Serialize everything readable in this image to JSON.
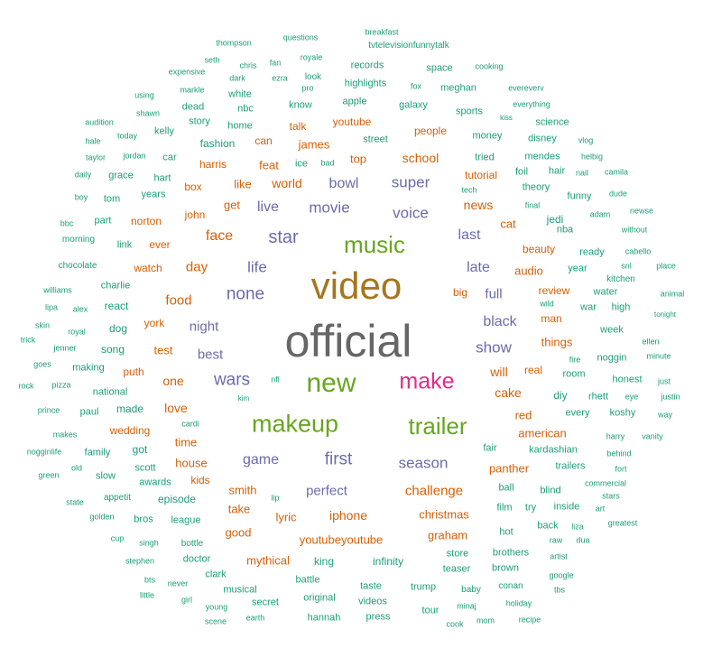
{
  "colors": {
    "purple": "#6b6bab",
    "orange": "#d95f02",
    "green": "#1b9e77",
    "lime": "#66a61e",
    "gold": "#a6761d",
    "magenta": "#e7298a",
    "gray": "#666666"
  },
  "words": [
    {
      "text": "official",
      "color": "gray"
    },
    {
      "text": "video",
      "color": "gold"
    },
    {
      "text": "new",
      "color": "lime"
    },
    {
      "text": "make",
      "color": "magenta"
    },
    {
      "text": "makeup",
      "color": "lime"
    },
    {
      "text": "trailer",
      "color": "lime"
    },
    {
      "text": "music",
      "color": "lime"
    },
    {
      "text": "star",
      "color": "purple"
    },
    {
      "text": "none",
      "color": "purple"
    },
    {
      "text": "life",
      "color": "purple"
    },
    {
      "text": "movie",
      "color": "purple"
    },
    {
      "text": "voice",
      "color": "purple"
    },
    {
      "text": "wars",
      "color": "purple"
    },
    {
      "text": "show",
      "color": "purple"
    },
    {
      "text": "season",
      "color": "purple"
    },
    {
      "text": "first",
      "color": "purple"
    },
    {
      "text": "game",
      "color": "purple"
    },
    {
      "text": "perfect",
      "color": "purple"
    },
    {
      "text": "black",
      "color": "purple"
    },
    {
      "text": "full",
      "color": "purple"
    },
    {
      "text": "late",
      "color": "purple"
    },
    {
      "text": "last",
      "color": "purple"
    },
    {
      "text": "super",
      "color": "purple"
    },
    {
      "text": "bowl",
      "color": "purple"
    },
    {
      "text": "live",
      "color": "purple"
    },
    {
      "text": "night",
      "color": "purple"
    },
    {
      "text": "best",
      "color": "purple"
    },
    {
      "text": "face",
      "color": "orange"
    },
    {
      "text": "day",
      "color": "orange"
    },
    {
      "text": "food",
      "color": "orange"
    },
    {
      "text": "one",
      "color": "orange"
    },
    {
      "text": "love",
      "color": "orange"
    },
    {
      "text": "iphone",
      "color": "orange"
    },
    {
      "text": "challenge",
      "color": "orange"
    },
    {
      "text": "school",
      "color": "orange"
    },
    {
      "text": "world",
      "color": "orange"
    },
    {
      "text": "news",
      "color": "orange"
    },
    {
      "text": "will",
      "color": "orange"
    },
    {
      "text": "cake",
      "color": "orange"
    },
    {
      "text": "house",
      "color": "orange"
    },
    {
      "text": "time",
      "color": "orange"
    },
    {
      "text": "smith",
      "color": "orange"
    },
    {
      "text": "take",
      "color": "orange"
    },
    {
      "text": "good",
      "color": "orange"
    },
    {
      "text": "lyric",
      "color": "orange"
    },
    {
      "text": "christmas",
      "color": "orange"
    },
    {
      "text": "graham",
      "color": "orange"
    },
    {
      "text": "youtubeyoutube",
      "color": "orange"
    },
    {
      "text": "mythical",
      "color": "orange"
    },
    {
      "text": "panther",
      "color": "orange"
    },
    {
      "text": "american",
      "color": "orange"
    },
    {
      "text": "red",
      "color": "orange"
    },
    {
      "text": "things",
      "color": "orange"
    },
    {
      "text": "man",
      "color": "orange"
    },
    {
      "text": "review",
      "color": "orange"
    },
    {
      "text": "audio",
      "color": "orange"
    },
    {
      "text": "beauty",
      "color": "orange"
    },
    {
      "text": "big",
      "color": "orange"
    },
    {
      "text": "real",
      "color": "orange"
    },
    {
      "text": "cat",
      "color": "orange"
    },
    {
      "text": "top",
      "color": "orange"
    },
    {
      "text": "james",
      "color": "orange"
    },
    {
      "text": "feat",
      "color": "orange"
    },
    {
      "text": "harris",
      "color": "orange"
    },
    {
      "text": "like",
      "color": "orange"
    },
    {
      "text": "get",
      "color": "orange"
    },
    {
      "text": "box",
      "color": "orange"
    },
    {
      "text": "john",
      "color": "orange"
    },
    {
      "text": "norton",
      "color": "orange"
    },
    {
      "text": "ever",
      "color": "orange"
    },
    {
      "text": "watch",
      "color": "orange"
    },
    {
      "text": "york",
      "color": "orange"
    },
    {
      "text": "test",
      "color": "orange"
    },
    {
      "text": "puth",
      "color": "orange"
    },
    {
      "text": "wedding",
      "color": "orange"
    },
    {
      "text": "kids",
      "color": "orange"
    },
    {
      "text": "talk",
      "color": "orange"
    },
    {
      "text": "youtube",
      "color": "orange"
    },
    {
      "text": "people",
      "color": "orange"
    },
    {
      "text": "can",
      "color": "orange"
    },
    {
      "text": "tutorial",
      "color": "orange"
    },
    {
      "text": "king",
      "color": "green"
    },
    {
      "text": "infinity",
      "color": "green"
    },
    {
      "text": "episode",
      "color": "green"
    },
    {
      "text": "league",
      "color": "green"
    },
    {
      "text": "awards",
      "color": "green"
    },
    {
      "text": "scott",
      "color": "green"
    },
    {
      "text": "got",
      "color": "green"
    },
    {
      "text": "slow",
      "color": "green"
    },
    {
      "text": "family",
      "color": "green"
    },
    {
      "text": "paul",
      "color": "green"
    },
    {
      "text": "national",
      "color": "green"
    },
    {
      "text": "made",
      "color": "green"
    },
    {
      "text": "making",
      "color": "green"
    },
    {
      "text": "song",
      "color": "green"
    },
    {
      "text": "dog",
      "color": "green"
    },
    {
      "text": "react",
      "color": "green"
    },
    {
      "text": "charlie",
      "color": "green"
    },
    {
      "text": "link",
      "color": "green"
    },
    {
      "text": "part",
      "color": "green"
    },
    {
      "text": "tom",
      "color": "green"
    },
    {
      "text": "years",
      "color": "green"
    },
    {
      "text": "hart",
      "color": "green"
    },
    {
      "text": "grace",
      "color": "green"
    },
    {
      "text": "car",
      "color": "green"
    },
    {
      "text": "kelly",
      "color": "green"
    },
    {
      "text": "fashion",
      "color": "green"
    },
    {
      "text": "home",
      "color": "green"
    },
    {
      "text": "story",
      "color": "green"
    },
    {
      "text": "dead",
      "color": "green"
    },
    {
      "text": "nbc",
      "color": "green"
    },
    {
      "text": "white",
      "color": "green"
    },
    {
      "text": "know",
      "color": "green"
    },
    {
      "text": "apple",
      "color": "green"
    },
    {
      "text": "highlights",
      "color": "green"
    },
    {
      "text": "records",
      "color": "green"
    },
    {
      "text": "galaxy",
      "color": "green"
    },
    {
      "text": "street",
      "color": "green"
    },
    {
      "text": "money",
      "color": "green"
    },
    {
      "text": "sports",
      "color": "green"
    },
    {
      "text": "meghan",
      "color": "green"
    },
    {
      "text": "space",
      "color": "green"
    },
    {
      "text": "science",
      "color": "green"
    },
    {
      "text": "disney",
      "color": "green"
    },
    {
      "text": "mendes",
      "color": "green"
    },
    {
      "text": "tried",
      "color": "green"
    },
    {
      "text": "hair",
      "color": "green"
    },
    {
      "text": "theory",
      "color": "green"
    },
    {
      "text": "foil",
      "color": "green"
    },
    {
      "text": "funny",
      "color": "green"
    },
    {
      "text": "jedi",
      "color": "green"
    },
    {
      "text": "nba",
      "color": "green"
    },
    {
      "text": "year",
      "color": "green"
    },
    {
      "text": "ready",
      "color": "green"
    },
    {
      "text": "water",
      "color": "green"
    },
    {
      "text": "kitchen",
      "color": "green"
    },
    {
      "text": "high",
      "color": "green"
    },
    {
      "text": "war",
      "color": "green"
    },
    {
      "text": "week",
      "color": "green"
    },
    {
      "text": "noggin",
      "color": "green"
    },
    {
      "text": "honest",
      "color": "green"
    },
    {
      "text": "room",
      "color": "green"
    },
    {
      "text": "diy",
      "color": "green"
    },
    {
      "text": "rhett",
      "color": "green"
    },
    {
      "text": "every",
      "color": "green"
    },
    {
      "text": "koshy",
      "color": "green"
    },
    {
      "text": "kardashian",
      "color": "green"
    },
    {
      "text": "fair",
      "color": "green"
    },
    {
      "text": "trailers",
      "color": "green"
    },
    {
      "text": "blind",
      "color": "green"
    },
    {
      "text": "ball",
      "color": "green"
    },
    {
      "text": "film",
      "color": "green"
    },
    {
      "text": "try",
      "color": "green"
    },
    {
      "text": "inside",
      "color": "green"
    },
    {
      "text": "hot",
      "color": "green"
    },
    {
      "text": "back",
      "color": "green"
    },
    {
      "text": "store",
      "color": "green"
    },
    {
      "text": "brothers",
      "color": "green"
    },
    {
      "text": "teaser",
      "color": "green"
    },
    {
      "text": "brown",
      "color": "green"
    },
    {
      "text": "tour",
      "color": "green"
    },
    {
      "text": "trump",
      "color": "green"
    },
    {
      "text": "taste",
      "color": "green"
    },
    {
      "text": "videos",
      "color": "green"
    },
    {
      "text": "press",
      "color": "green"
    },
    {
      "text": "baby",
      "color": "green"
    },
    {
      "text": "conan",
      "color": "green"
    },
    {
      "text": "original",
      "color": "green"
    },
    {
      "text": "hannah",
      "color": "green"
    },
    {
      "text": "battle",
      "color": "green"
    },
    {
      "text": "secret",
      "color": "green"
    },
    {
      "text": "musical",
      "color": "green"
    },
    {
      "text": "clark",
      "color": "green"
    },
    {
      "text": "doctor",
      "color": "green"
    },
    {
      "text": "bottle",
      "color": "green"
    },
    {
      "text": "bros",
      "color": "green"
    },
    {
      "text": "appetit",
      "color": "green"
    },
    {
      "text": "thompson",
      "color": "green"
    },
    {
      "text": "questions",
      "color": "green"
    },
    {
      "text": "breakfast",
      "color": "green"
    },
    {
      "text": "tvtelevisionfunnytalk",
      "color": "green"
    },
    {
      "text": "seth",
      "color": "green"
    },
    {
      "text": "chris",
      "color": "green"
    },
    {
      "text": "fan",
      "color": "green"
    },
    {
      "text": "royale",
      "color": "green"
    },
    {
      "text": "expensive",
      "color": "green"
    },
    {
      "text": "dark",
      "color": "green"
    },
    {
      "text": "ezra",
      "color": "green"
    },
    {
      "text": "look",
      "color": "green"
    },
    {
      "text": "pro",
      "color": "green"
    },
    {
      "text": "fox",
      "color": "green"
    },
    {
      "text": "cooking",
      "color": "green"
    },
    {
      "text": "evereverv",
      "color": "green"
    },
    {
      "text": "everything",
      "color": "green"
    },
    {
      "text": "using",
      "color": "green"
    },
    {
      "text": "markle",
      "color": "green"
    },
    {
      "text": "shawn",
      "color": "green"
    },
    {
      "text": "audition",
      "color": "green"
    },
    {
      "text": "kiss",
      "color": "green"
    },
    {
      "text": "hale",
      "color": "green"
    },
    {
      "text": "today",
      "color": "green"
    },
    {
      "text": "taylor",
      "color": "green"
    },
    {
      "text": "jordan",
      "color": "green"
    },
    {
      "text": "ice",
      "color": "green"
    },
    {
      "text": "bad",
      "color": "green"
    },
    {
      "text": "vlog",
      "color": "green"
    },
    {
      "text": "helbig",
      "color": "green"
    },
    {
      "text": "nail",
      "color": "green"
    },
    {
      "text": "camila",
      "color": "green"
    },
    {
      "text": "daily",
      "color": "green"
    },
    {
      "text": "boy",
      "color": "green"
    },
    {
      "text": "tech",
      "color": "green"
    },
    {
      "text": "dude",
      "color": "green"
    },
    {
      "text": "final",
      "color": "green"
    },
    {
      "text": "newse",
      "color": "green"
    },
    {
      "text": "adam",
      "color": "green"
    },
    {
      "text": "without",
      "color": "green"
    },
    {
      "text": "bbc",
      "color": "green"
    },
    {
      "text": "morning",
      "color": "green"
    },
    {
      "text": "cabello",
      "color": "green"
    },
    {
      "text": "snl",
      "color": "green"
    },
    {
      "text": "place",
      "color": "green"
    },
    {
      "text": "chocolate",
      "color": "green"
    },
    {
      "text": "williams",
      "color": "green"
    },
    {
      "text": "animal",
      "color": "green"
    },
    {
      "text": "lipa",
      "color": "green"
    },
    {
      "text": "alex",
      "color": "green"
    },
    {
      "text": "wild",
      "color": "green"
    },
    {
      "text": "tonight",
      "color": "green"
    },
    {
      "text": "skin",
      "color": "green"
    },
    {
      "text": "royal",
      "color": "green"
    },
    {
      "text": "trick",
      "color": "green"
    },
    {
      "text": "jenner",
      "color": "green"
    },
    {
      "text": "ellen",
      "color": "green"
    },
    {
      "text": "goes",
      "color": "green"
    },
    {
      "text": "minute",
      "color": "green"
    },
    {
      "text": "fire",
      "color": "green"
    },
    {
      "text": "rock",
      "color": "green"
    },
    {
      "text": "pizza",
      "color": "green"
    },
    {
      "text": "nfl",
      "color": "green"
    },
    {
      "text": "just",
      "color": "green"
    },
    {
      "text": "kim",
      "color": "green"
    },
    {
      "text": "eye",
      "color": "green"
    },
    {
      "text": "justin",
      "color": "green"
    },
    {
      "text": "prince",
      "color": "green"
    },
    {
      "text": "way",
      "color": "green"
    },
    {
      "text": "cardi",
      "color": "green"
    },
    {
      "text": "makes",
      "color": "green"
    },
    {
      "text": "harry",
      "color": "green"
    },
    {
      "text": "vanity",
      "color": "green"
    },
    {
      "text": "nogginlife",
      "color": "green"
    },
    {
      "text": "behind",
      "color": "green"
    },
    {
      "text": "old",
      "color": "green"
    },
    {
      "text": "fort",
      "color": "green"
    },
    {
      "text": "green",
      "color": "green"
    },
    {
      "text": "commercial",
      "color": "green"
    },
    {
      "text": "lip",
      "color": "green"
    },
    {
      "text": "stars",
      "color": "green"
    },
    {
      "text": "state",
      "color": "green"
    },
    {
      "text": "art",
      "color": "green"
    },
    {
      "text": "golden",
      "color": "green"
    },
    {
      "text": "greatest",
      "color": "green"
    },
    {
      "text": "liza",
      "color": "green"
    },
    {
      "text": "cup",
      "color": "green"
    },
    {
      "text": "raw",
      "color": "green"
    },
    {
      "text": "dua",
      "color": "green"
    },
    {
      "text": "singh",
      "color": "green"
    },
    {
      "text": "artist",
      "color": "green"
    },
    {
      "text": "stephen",
      "color": "green"
    },
    {
      "text": "google",
      "color": "green"
    },
    {
      "text": "bts",
      "color": "green"
    },
    {
      "text": "never",
      "color": "green"
    },
    {
      "text": "tbs",
      "color": "green"
    },
    {
      "text": "little",
      "color": "green"
    },
    {
      "text": "girl",
      "color": "green"
    },
    {
      "text": "minaj",
      "color": "green"
    },
    {
      "text": "holiday",
      "color": "green"
    },
    {
      "text": "young",
      "color": "green"
    },
    {
      "text": "earth",
      "color": "green"
    },
    {
      "text": "scene",
      "color": "green"
    },
    {
      "text": "cook",
      "color": "green"
    },
    {
      "text": "mom",
      "color": "green"
    },
    {
      "text": "recipe",
      "color": "green"
    }
  ]
}
